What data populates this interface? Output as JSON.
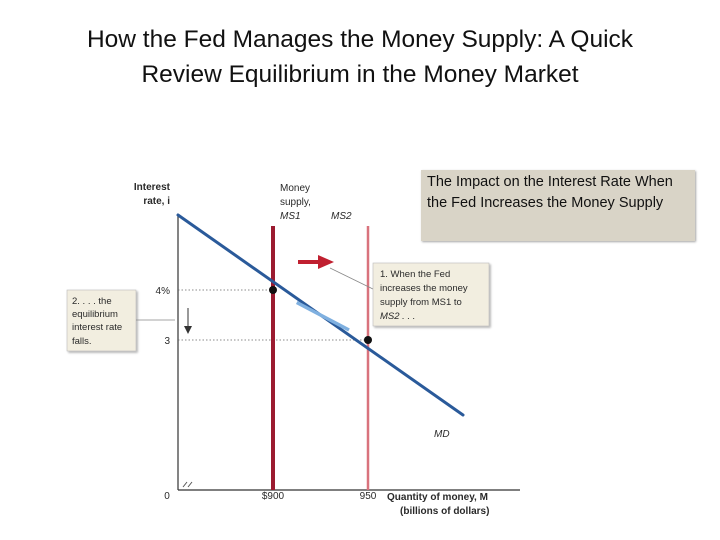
{
  "slide": {
    "title_line1": "How the Fed Manages the Money Supply:  A Quick",
    "title_line2": "Review Equilibrium in the Money Market",
    "callout": "The Impact on the Interest Rate When the Fed Increases the Money Supply"
  },
  "chart_data": {
    "type": "line",
    "ylabel_line1": "Interest",
    "ylabel_line2": "rate, i",
    "xlabel_line1": "Quantity of money, M",
    "xlabel_line2": "(billions of dollars)",
    "xlim": [
      850,
      1030
    ],
    "ylim": [
      0,
      5.5
    ],
    "x_ticks": [
      {
        "value": 900,
        "label": "$900"
      },
      {
        "value": 950,
        "label": "950"
      }
    ],
    "y_ticks": [
      {
        "value": 4,
        "label": "4%"
      },
      {
        "value": 3,
        "label": "3"
      }
    ],
    "origin_label": "0",
    "series": [
      {
        "name": "MD",
        "role": "demand",
        "color": "#2a5a9a",
        "points": [
          {
            "x": 850,
            "y": 5.5
          },
          {
            "x": 1000,
            "y": 1.5
          }
        ]
      },
      {
        "name_line1": "Money",
        "name_line2": "supply,",
        "name_line3": "MS1",
        "role": "supply-initial",
        "color": "#9b1b30",
        "x": 900
      },
      {
        "name": "MS2",
        "role": "supply-new",
        "color": "#d9737d",
        "x": 950
      }
    ],
    "equilibria": [
      {
        "x": 900,
        "y": 4
      },
      {
        "x": 950,
        "y": 3
      }
    ],
    "annotations": {
      "note1": [
        "1. When the Fed",
        "increases the money",
        "supply from MS1 to",
        "MS2 . . ."
      ],
      "note2": [
        "2. . . . the",
        "equilibrium",
        "interest rate",
        "falls."
      ]
    },
    "colors": {
      "demand": "#2a5a9a",
      "ms1": "#9b1b30",
      "ms2": "#d9737d",
      "note_bg": "#f2eee0"
    }
  }
}
